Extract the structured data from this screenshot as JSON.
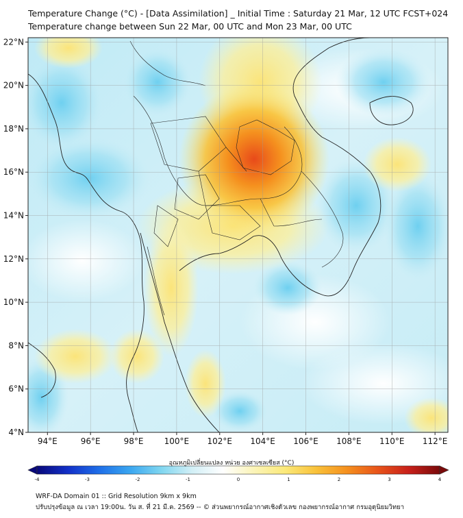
{
  "title": {
    "line1": "Temperature Change (°C) - [Data Assimilation] _ Initial Time : Saturday 21 Mar, 12 UTC FCST+024",
    "line2": "Temperature change between Sun 22 Mar, 00 UTC and Mon 23 Mar, 00 UTC"
  },
  "axes": {
    "lat_ticks": [
      "22°N",
      "20°N",
      "18°N",
      "16°N",
      "14°N",
      "12°N",
      "10°N",
      "8°N",
      "6°N",
      "4°N"
    ],
    "lat_values": [
      22,
      20,
      18,
      16,
      14,
      12,
      10,
      8,
      6,
      4
    ],
    "lon_ticks": [
      "94°E",
      "96°E",
      "98°E",
      "100°E",
      "102°E",
      "104°E",
      "106°E",
      "108°E",
      "110°E",
      "112°E"
    ],
    "lon_values": [
      94,
      96,
      98,
      100,
      102,
      104,
      106,
      108,
      110,
      112
    ],
    "lat_range": [
      4,
      22.2
    ],
    "lon_range": [
      93.1,
      112.6
    ],
    "grid": true
  },
  "colorbar": {
    "title": "อุณหภูมิเปลี่ยนแปลง หน่วย องศาเซลเซียส (°C)",
    "ticks": [
      "-4",
      "-3",
      "-2",
      "-1",
      "0",
      "1",
      "2",
      "3",
      "4"
    ],
    "range": [
      -4,
      4
    ],
    "colors": [
      "#08087a",
      "#1230c8",
      "#1e6ee8",
      "#3aa6f0",
      "#7fd6f0",
      "#d2eff6",
      "#ffffff",
      "#fbf4b8",
      "#fbe97a",
      "#f9c23a",
      "#f5901e",
      "#e8541a",
      "#c8201a",
      "#7a0a0a"
    ]
  },
  "field": {
    "hotspot_max_c": 3.2,
    "hotspot_center": {
      "lon": 103.6,
      "lat": 16.6
    }
  },
  "footer": {
    "line1": "WRF-DA Domain 01 :: Grid Resolution 9km x 9km",
    "line2": "ปรับปรุงข้อมูล ณ เวลา 19:00น. วัน ส. ที่ 21 มี.ค. 2569 -- © ส่วนพยากรณ์อากาศเชิงตัวเลข กองพยากรณ์อากาศ กรมอุตุนิยมวิทยา"
  }
}
